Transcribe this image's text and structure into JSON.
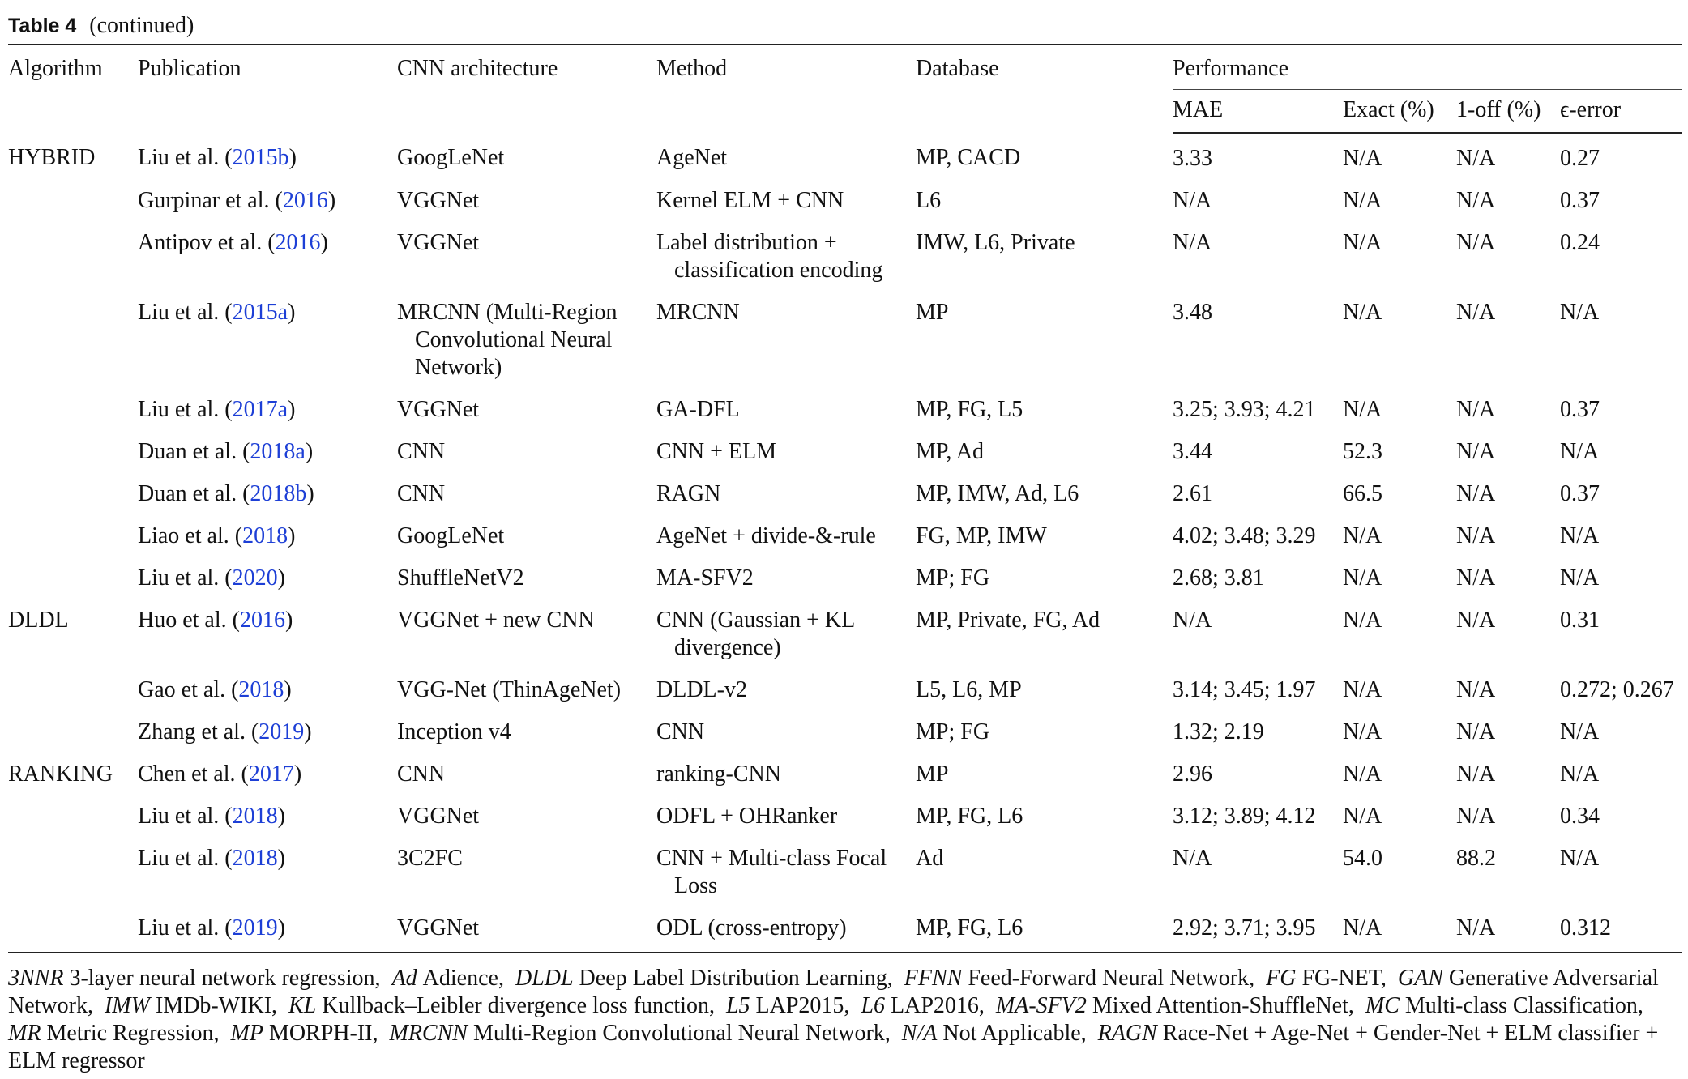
{
  "caption": {
    "label": "Table 4",
    "note": "(continued)"
  },
  "header": {
    "columns": [
      "Algorithm",
      "Publication",
      "CNN architecture",
      "Method",
      "Database"
    ],
    "group": "Performance",
    "sub": [
      "MAE",
      "Exact (%)",
      "1-off (%)",
      "ϵ-error"
    ]
  },
  "table": {
    "rows": [
      [
        "HYBRID",
        [
          "Liu et al. (",
          "2015b",
          ")"
        ],
        "GoogLeNet",
        "AgeNet",
        "MP, CACD",
        "3.33",
        "N/A",
        "N/A",
        "0.27"
      ],
      [
        "",
        [
          "Gurpinar et al. (",
          "2016",
          ")"
        ],
        "VGGNet",
        "Kernel ELM + CNN",
        "L6",
        "N/A",
        "N/A",
        "N/A",
        "0.37"
      ],
      [
        "",
        [
          "Antipov et al. (",
          "2016",
          ")"
        ],
        "VGGNet",
        "Label distribution + classification encoding",
        "IMW, L6, Private",
        "N/A",
        "N/A",
        "N/A",
        "0.24"
      ],
      [
        "",
        [
          "Liu et al. (",
          "2015a",
          ")"
        ],
        "MRCNN (Multi-Region Convolutional Neural Network)",
        "MRCNN",
        "MP",
        "3.48",
        "N/A",
        "N/A",
        "N/A"
      ],
      [
        "",
        [
          "Liu et al. (",
          "2017a",
          ")"
        ],
        "VGGNet",
        "GA-DFL",
        "MP, FG, L5",
        "3.25; 3.93; 4.21",
        "N/A",
        "N/A",
        "0.37"
      ],
      [
        "",
        [
          "Duan et al. (",
          "2018a",
          ")"
        ],
        "CNN",
        "CNN + ELM",
        "MP, Ad",
        "3.44",
        "52.3",
        "N/A",
        "N/A"
      ],
      [
        "",
        [
          "Duan et al. (",
          "2018b",
          ")"
        ],
        "CNN",
        "RAGN",
        "MP, IMW, Ad, L6",
        "2.61",
        "66.5",
        "N/A",
        "0.37"
      ],
      [
        "",
        [
          "Liao et al. (",
          "2018",
          ")"
        ],
        "GoogLeNet",
        "AgeNet + divide-&-rule",
        "FG, MP, IMW",
        "4.02; 3.48; 3.29",
        "N/A",
        "N/A",
        "N/A"
      ],
      [
        "",
        [
          "Liu et al. (",
          "2020",
          ")"
        ],
        "ShuffleNetV2",
        "MA-SFV2",
        "MP; FG",
        "2.68; 3.81",
        "N/A",
        "N/A",
        "N/A"
      ],
      [
        "DLDL",
        [
          "Huo et al. (",
          "2016",
          ")"
        ],
        "VGGNet + new CNN",
        "CNN (Gaussian + KL divergence)",
        "MP, Private, FG, Ad",
        "N/A",
        "N/A",
        "N/A",
        "0.31"
      ],
      [
        "",
        [
          "Gao et al. (",
          "2018",
          ")"
        ],
        "VGG-Net (ThinAgeNet)",
        "DLDL-v2",
        "L5, L6, MP",
        "3.14; 3.45; 1.97",
        "N/A",
        "N/A",
        "0.272; 0.267"
      ],
      [
        "",
        [
          "Zhang et al. (",
          "2019",
          ")"
        ],
        "Inception v4",
        "CNN",
        "MP; FG",
        "1.32; 2.19",
        "N/A",
        "N/A",
        "N/A"
      ],
      [
        "RANKING",
        [
          "Chen et al. (",
          "2017",
          ")"
        ],
        "CNN",
        "ranking-CNN",
        "MP",
        "2.96",
        "N/A",
        "N/A",
        "N/A"
      ],
      [
        "",
        [
          "Liu et al. (",
          "2018",
          ")"
        ],
        "VGGNet",
        "ODFL + OHRanker",
        "MP, FG, L6",
        "3.12; 3.89; 4.12",
        "N/A",
        "N/A",
        "0.34"
      ],
      [
        "",
        [
          "Liu et al. (",
          "2018",
          ")"
        ],
        "3C2FC",
        "CNN + Multi-class Focal Loss",
        "Ad",
        "N/A",
        "54.0",
        "88.2",
        "N/A"
      ],
      [
        "",
        [
          "Liu et al. (",
          "2019",
          ")"
        ],
        "VGGNet",
        "ODL (cross-entropy)",
        "MP, FG, L6",
        "2.92; 3.71; 3.95",
        "N/A",
        "N/A",
        "0.312"
      ]
    ]
  },
  "footnote": [
    {
      "abbr": "3NNR",
      "text": "3-layer neural network regression,"
    },
    {
      "abbr": "Ad",
      "text": "Adience,"
    },
    {
      "abbr": "DLDL",
      "text": "Deep Label Distribution Learning,"
    },
    {
      "abbr": "FFNN",
      "text": "Feed-Forward Neural Network,"
    },
    {
      "abbr": "FG",
      "text": "FG-NET,"
    },
    {
      "abbr": "GAN",
      "text": "Generative Adversarial Network,"
    },
    {
      "abbr": "IMW",
      "text": "IMDb-WIKI,"
    },
    {
      "abbr": "KL",
      "text": "Kullback–Leibler divergence loss function,"
    },
    {
      "abbr": "L5",
      "text": "LAP2015,"
    },
    {
      "abbr": "L6",
      "text": "LAP2016,"
    },
    {
      "abbr": "MA-SFV2",
      "text": "Mixed Attention-ShuffleNet,"
    },
    {
      "abbr": "MC",
      "text": "Multi-class Classification,"
    },
    {
      "abbr": "MR",
      "text": "Metric Regression,"
    },
    {
      "abbr": "MP",
      "text": "MORPH-II,"
    },
    {
      "abbr": "MRCNN",
      "text": "Multi-Region Convolutional Neural Network,"
    },
    {
      "abbr": "N/A",
      "text": "Not Applicable,"
    },
    {
      "abbr": "RAGN",
      "text": "Race-Net + Age-Net + Gender-Net + ELM classifier + ELM regressor"
    }
  ]
}
